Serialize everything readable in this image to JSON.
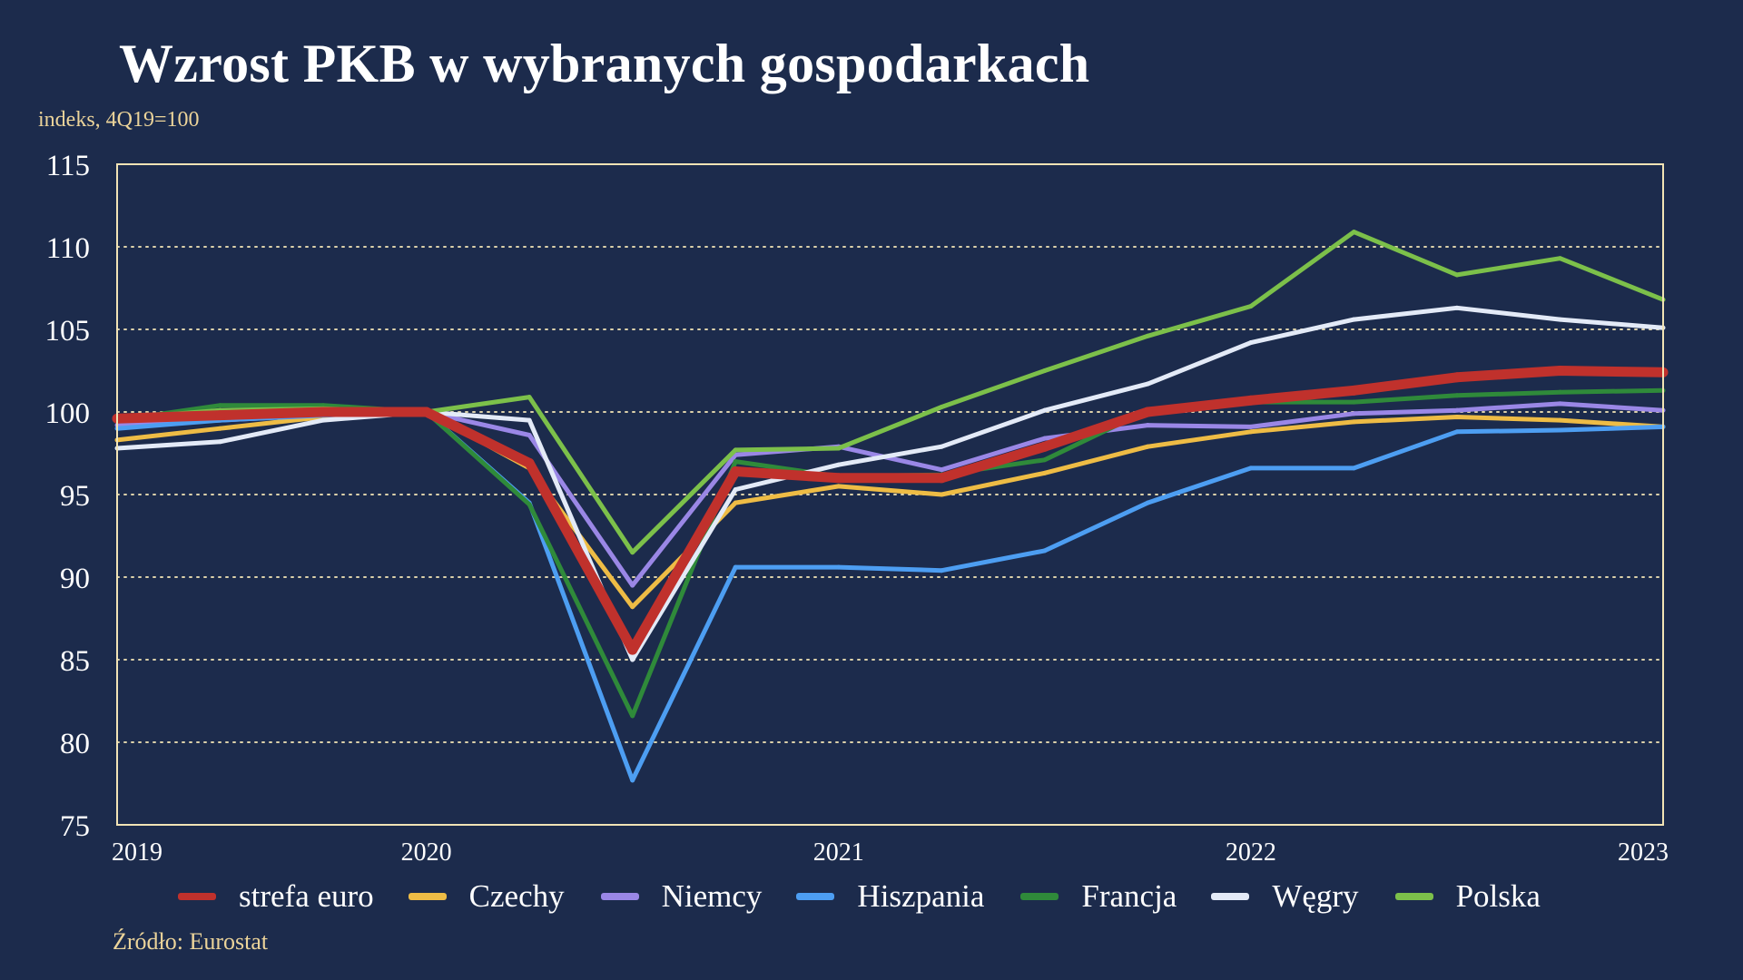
{
  "title": "Wzrost PKB w wybranych gospodarkach",
  "subtitle": "indeks, 4Q19=100",
  "source": "Źródło: Eurostat",
  "colors": {
    "background": "#1c2b4c",
    "frame": "#f1e3b5",
    "grid": "#f1e3b5",
    "axis_text": "#ffffff",
    "subtitle": "#ecd49a"
  },
  "chart_data": {
    "type": "line",
    "ylabel": "indeks, 4Q19=100",
    "ylim": [
      75,
      115
    ],
    "yticks": [
      75,
      80,
      85,
      90,
      95,
      100,
      105,
      110,
      115
    ],
    "x": [
      "1Q19",
      "2Q19",
      "3Q19",
      "4Q19",
      "1Q20",
      "2Q20",
      "3Q20",
      "4Q20",
      "1Q21",
      "2Q21",
      "3Q21",
      "4Q21",
      "1Q22",
      "2Q22",
      "3Q22",
      "4Q22"
    ],
    "xticks": [
      {
        "label": "2019",
        "at": "1Q19"
      },
      {
        "label": "2020",
        "at": "4Q19"
      },
      {
        "label": "2021",
        "at": "4Q20"
      },
      {
        "label": "2022",
        "at": "4Q21"
      },
      {
        "label": "2023",
        "at": "4Q22"
      }
    ],
    "grid": "horizontal dotted",
    "legend_position": "bottom",
    "series": [
      {
        "name": "Czechy",
        "color": "#eebc45",
        "width": 5,
        "values": [
          98.3,
          99.0,
          99.7,
          100.0,
          96.6,
          88.2,
          94.5,
          95.5,
          95.0,
          96.3,
          97.9,
          98.8,
          99.4,
          99.7,
          99.5,
          99.1
        ]
      },
      {
        "name": "Niemcy",
        "color": "#9a87e6",
        "width": 5,
        "values": [
          99.2,
          99.5,
          99.8,
          100.0,
          98.6,
          89.5,
          97.4,
          97.9,
          96.5,
          98.4,
          99.2,
          99.1,
          99.9,
          100.1,
          100.5,
          100.1
        ]
      },
      {
        "name": "Hiszpania",
        "color": "#4d9ef2",
        "width": 5,
        "values": [
          99.0,
          99.5,
          99.8,
          100.0,
          94.5,
          77.7,
          90.6,
          90.6,
          90.4,
          91.6,
          94.5,
          96.6,
          96.6,
          98.8,
          98.9,
          99.1
        ]
      },
      {
        "name": "Francja",
        "color": "#2f8a3a",
        "width": 5,
        "values": [
          99.5,
          100.4,
          100.4,
          100.0,
          94.4,
          81.6,
          97.0,
          96.1,
          96.2,
          97.1,
          100.1,
          100.6,
          100.6,
          101.0,
          101.2,
          101.3
        ]
      },
      {
        "name": "Węgry",
        "color": "#e3eaf7",
        "width": 5,
        "values": [
          97.8,
          98.2,
          99.5,
          100.0,
          99.5,
          85.0,
          95.3,
          96.8,
          97.9,
          100.1,
          101.7,
          104.2,
          105.6,
          106.3,
          105.6,
          105.1
        ]
      },
      {
        "name": "Polska",
        "color": "#7cc04a",
        "width": 5,
        "values": [
          99.6,
          100.1,
          100.2,
          100.0,
          100.9,
          91.5,
          97.7,
          97.8,
          100.3,
          102.5,
          104.6,
          106.4,
          110.9,
          108.3,
          109.3,
          106.8
        ]
      },
      {
        "name": "strefa euro",
        "color": "#c0312c",
        "width": 11,
        "values": [
          99.6,
          99.8,
          100.0,
          100.0,
          96.9,
          85.6,
          96.4,
          96.0,
          96.0,
          97.9,
          100.0,
          100.7,
          101.3,
          102.1,
          102.5,
          102.4
        ]
      }
    ]
  },
  "legend": {
    "items": [
      {
        "label": "strefa euro",
        "color": "#c0312c"
      },
      {
        "label": "Czechy",
        "color": "#eebc45"
      },
      {
        "label": "Niemcy",
        "color": "#9a87e6"
      },
      {
        "label": "Hiszpania",
        "color": "#4d9ef2"
      },
      {
        "label": "Francja",
        "color": "#2f8a3a"
      },
      {
        "label": "Węgry",
        "color": "#e3eaf7"
      },
      {
        "label": "Polska",
        "color": "#7cc04a"
      }
    ]
  }
}
